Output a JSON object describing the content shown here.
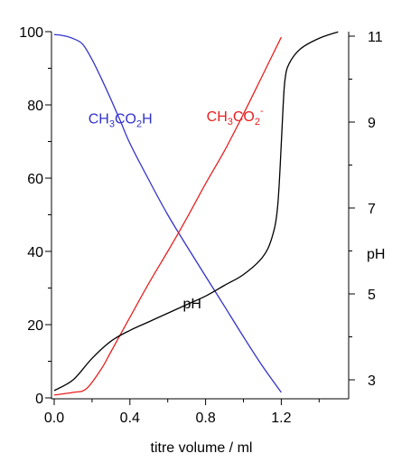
{
  "chart_data": {
    "type": "line",
    "xlabel": "titre volume / ml",
    "ylabel_left": "",
    "ylabel_right": "pH",
    "xlim": [
      0,
      1.5
    ],
    "ylim_left": [
      0,
      100
    ],
    "ylim_right": [
      2.6,
      11.3
    ],
    "x_ticks": [
      "0.0",
      "0.4",
      "0.8",
      "1.2"
    ],
    "y_left_ticks": [
      "0",
      "20",
      "40",
      "60",
      "80",
      "100"
    ],
    "y_right_ticks": [
      "3",
      "5",
      "7",
      "9",
      "11"
    ],
    "grid": false,
    "series": [
      {
        "name": "CH3CO2H",
        "axis": "left",
        "color": "#3333cc",
        "x": [
          0.0,
          0.05,
          0.1,
          0.15,
          0.2,
          0.25,
          0.3,
          0.35,
          0.4,
          0.5,
          0.6,
          0.7,
          0.8,
          0.9,
          1.0,
          1.1,
          1.2
        ],
        "y": [
          99.2,
          98.9,
          98.1,
          96.6,
          92.4,
          87.1,
          81.5,
          75.6,
          69.5,
          59.5,
          50.0,
          41.5,
          33.2,
          25.0,
          16.7,
          8.7,
          1.5
        ]
      },
      {
        "name": "CH3CO2-",
        "axis": "left",
        "color": "#e82020",
        "x": [
          0.0,
          0.1,
          0.17,
          0.25,
          0.3,
          0.4,
          0.5,
          0.6,
          0.7,
          0.8,
          0.9,
          1.0,
          1.1,
          1.2
        ],
        "y": [
          0.8,
          1.5,
          2.5,
          8.0,
          12.6,
          22.0,
          31.3,
          40.0,
          49.0,
          58.5,
          67.5,
          77.5,
          88.0,
          98.5
        ]
      },
      {
        "name": "pH",
        "axis": "right",
        "color": "#000000",
        "x": [
          0.0,
          0.1,
          0.2,
          0.3,
          0.4,
          0.5,
          0.6,
          0.7,
          0.8,
          0.9,
          1.0,
          1.1,
          1.15,
          1.18,
          1.2,
          1.21,
          1.22,
          1.24,
          1.3,
          1.4,
          1.5
        ],
        "y": [
          2.75,
          3.0,
          3.5,
          3.9,
          4.15,
          4.35,
          4.55,
          4.75,
          4.95,
          5.2,
          5.45,
          5.85,
          6.3,
          7.0,
          8.5,
          9.4,
          10.0,
          10.35,
          10.7,
          10.95,
          11.1
        ]
      }
    ],
    "annotations": [
      {
        "text": "CH",
        "sub1": "3",
        "mid": "CO",
        "sub2": "2",
        "tail": "H",
        "color": "#3333cc",
        "x": 0.18,
        "y": 75
      },
      {
        "text": "CH",
        "sub1": "3",
        "mid": "CO",
        "sub2": "2",
        "tail": "-",
        "color": "#e82020",
        "x": 0.805,
        "y": 75.5
      },
      {
        "text": "pH",
        "color": "#000000",
        "x": 0.68,
        "y": 24.5
      }
    ]
  }
}
